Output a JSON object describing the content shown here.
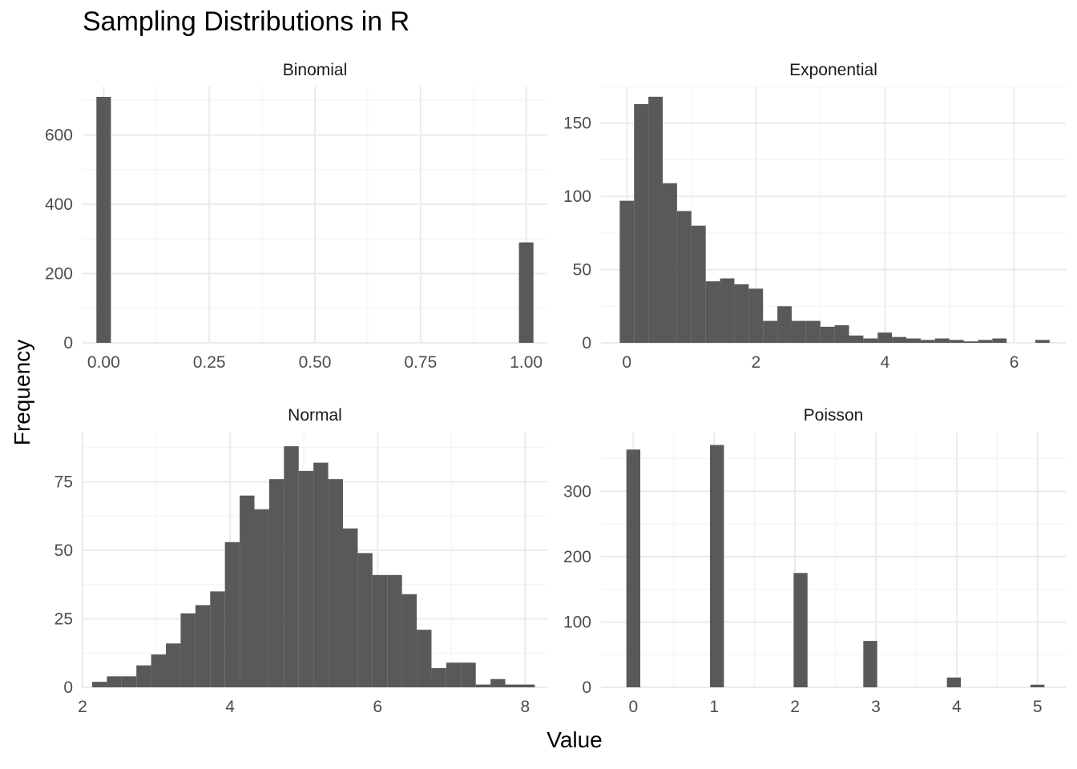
{
  "title": "Sampling Distributions in R",
  "xlabel": "Value",
  "ylabel": "Frequency",
  "colors": {
    "bar": "#595959",
    "grid_major": "#ebebeb",
    "grid_minor": "#f2f2f2",
    "tick_text": "#4d4d4d",
    "strip_text": "#1a1a1a"
  },
  "chart_data": [
    {
      "type": "bar",
      "facet": "Binomial",
      "xlim": [
        -0.05,
        1.05
      ],
      "ylim": [
        0,
        740
      ],
      "x_breaks": [
        0,
        0.25,
        0.5,
        0.75,
        1
      ],
      "x_tick_labels": [
        "0.00",
        "0.25",
        "0.50",
        "0.75",
        "1.00"
      ],
      "y_breaks": [
        0,
        200,
        400,
        600
      ],
      "y_tick_labels": [
        "0",
        "200",
        "400",
        "600"
      ],
      "bins": [
        {
          "x0": -0.0172,
          "x1": 0.0172,
          "count": 710
        },
        {
          "x0": 0.9828,
          "x1": 1.0172,
          "count": 290
        }
      ]
    },
    {
      "type": "bar",
      "facet": "Exponential",
      "xlim": [
        -0.4,
        6.8
      ],
      "ylim": [
        0,
        175
      ],
      "x_breaks": [
        0,
        2,
        4,
        6
      ],
      "x_tick_labels": [
        "0",
        "2",
        "4",
        "6"
      ],
      "y_breaks": [
        0,
        50,
        100,
        150
      ],
      "y_tick_labels": [
        "0",
        "50",
        "100",
        "150"
      ],
      "bin_start": -0.11,
      "bin_width": 0.222,
      "counts": [
        97,
        163,
        168,
        109,
        90,
        80,
        42,
        44,
        40,
        37,
        15,
        25,
        15,
        15,
        11,
        12,
        5,
        3,
        7,
        4,
        3,
        2,
        3,
        2,
        1,
        2,
        3,
        0,
        0,
        2
      ]
    },
    {
      "type": "bar",
      "facet": "Normal",
      "xlim": [
        2,
        8.3
      ],
      "ylim": [
        0,
        93
      ],
      "x_breaks": [
        2,
        4,
        6,
        8
      ],
      "x_tick_labels": [
        "2",
        "4",
        "6",
        "8"
      ],
      "y_breaks": [
        0,
        25,
        50,
        75
      ],
      "y_tick_labels": [
        "0",
        "25",
        "50",
        "75"
      ],
      "bin_start": 2.13,
      "bin_width": 0.2,
      "counts": [
        2,
        4,
        4,
        8,
        12,
        16,
        27,
        30,
        35,
        53,
        70,
        65,
        76,
        88,
        79,
        82,
        76,
        58,
        49,
        41,
        41,
        34,
        21,
        7,
        9,
        9,
        1,
        3,
        1,
        1
      ]
    },
    {
      "type": "bar",
      "facet": "Poisson",
      "xlim": [
        -0.4,
        5.35
      ],
      "ylim": [
        0,
        390
      ],
      "x_breaks": [
        0,
        1,
        2,
        3,
        4,
        5
      ],
      "x_tick_labels": [
        "0",
        "1",
        "2",
        "3",
        "4",
        "5"
      ],
      "y_breaks": [
        0,
        100,
        200,
        300
      ],
      "y_tick_labels": [
        "0",
        "100",
        "200",
        "300"
      ],
      "bins": [
        {
          "x0": -0.086,
          "x1": 0.086,
          "count": 364
        },
        {
          "x0": 0.948,
          "x1": 1.121,
          "count": 371
        },
        {
          "x0": 1.983,
          "x1": 2.155,
          "count": 175
        },
        {
          "x0": 2.845,
          "x1": 3.017,
          "count": 71
        },
        {
          "x0": 3.879,
          "x1": 4.052,
          "count": 15
        },
        {
          "x0": 4.914,
          "x1": 5.086,
          "count": 4
        }
      ]
    }
  ]
}
